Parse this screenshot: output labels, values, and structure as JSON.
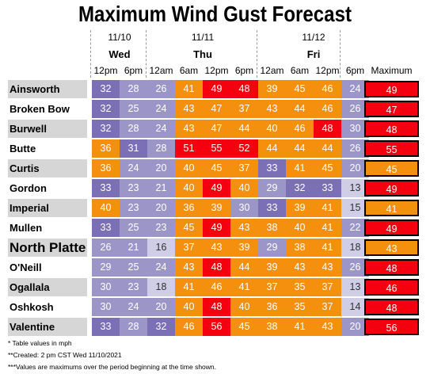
{
  "title": "Maximum Wind Gust Forecast",
  "dates": [
    "11/10",
    "11/11",
    "11/12"
  ],
  "days": [
    "Wed",
    "Thu",
    "Fri"
  ],
  "times": [
    "12pm",
    "6pm",
    "12am",
    "6am",
    "12pm",
    "6pm",
    "12am",
    "6am",
    "12pm",
    "6pm"
  ],
  "max_header": "Maximum",
  "colors": {
    "purple_dark": "#7b6fb5",
    "purple_mid": "#9c96c8",
    "lavender": "#d0cde6",
    "orange": "#f5900f",
    "red": "#f5000f"
  },
  "footnotes": [
    "* Table values in mph",
    "**Created: 2 pm CST Wed 11/10/2021",
    "***Values are maximums over the period beginning at the time shown."
  ],
  "chart_data": {
    "type": "table",
    "title": "Maximum Wind Gust Forecast",
    "columns": [
      "Wed 11/10 12pm",
      "Wed 11/10 6pm",
      "Thu 11/11 12am",
      "Thu 11/11 6am",
      "Thu 11/11 12pm",
      "Thu 11/11 6pm",
      "Fri 11/12 12am",
      "Fri 11/12 6am",
      "Fri 11/12 12pm",
      "Fri 11/12 6pm",
      "Maximum"
    ],
    "units": "mph",
    "rows": [
      {
        "station": "Ainsworth",
        "values": [
          32,
          28,
          26,
          41,
          49,
          48,
          39,
          45,
          46,
          24
        ],
        "max": 49
      },
      {
        "station": "Broken Bow",
        "values": [
          32,
          25,
          24,
          43,
          47,
          37,
          43,
          44,
          46,
          26
        ],
        "max": 47
      },
      {
        "station": "Burwell",
        "values": [
          32,
          28,
          24,
          43,
          47,
          44,
          40,
          46,
          48,
          30
        ],
        "max": 48
      },
      {
        "station": "Butte",
        "values": [
          36,
          31,
          28,
          51,
          55,
          52,
          44,
          44,
          44,
          26
        ],
        "max": 55
      },
      {
        "station": "Curtis",
        "values": [
          36,
          24,
          20,
          40,
          45,
          37,
          33,
          41,
          45,
          20
        ],
        "max": 45
      },
      {
        "station": "Gordon",
        "values": [
          33,
          23,
          21,
          40,
          49,
          40,
          29,
          32,
          33,
          13
        ],
        "max": 49
      },
      {
        "station": "Imperial",
        "values": [
          40,
          23,
          20,
          36,
          39,
          30,
          33,
          39,
          41,
          15
        ],
        "max": 41
      },
      {
        "station": "Mullen",
        "values": [
          33,
          25,
          23,
          45,
          49,
          43,
          38,
          40,
          41,
          22
        ],
        "max": 49
      },
      {
        "station": "North Platte",
        "values": [
          26,
          21,
          16,
          37,
          43,
          39,
          29,
          38,
          41,
          18
        ],
        "max": 43
      },
      {
        "station": "O'Neill",
        "values": [
          29,
          25,
          24,
          43,
          48,
          44,
          39,
          43,
          43,
          26
        ],
        "max": 48
      },
      {
        "station": "Ogallala",
        "values": [
          30,
          23,
          18,
          41,
          46,
          41,
          37,
          35,
          37,
          13
        ],
        "max": 46
      },
      {
        "station": "Oshkosh",
        "values": [
          30,
          24,
          20,
          40,
          48,
          40,
          36,
          35,
          37,
          14
        ],
        "max": 48
      },
      {
        "station": "Valentine",
        "values": [
          33,
          28,
          32,
          46,
          56,
          45,
          38,
          41,
          43,
          20
        ],
        "max": 56
      }
    ]
  }
}
